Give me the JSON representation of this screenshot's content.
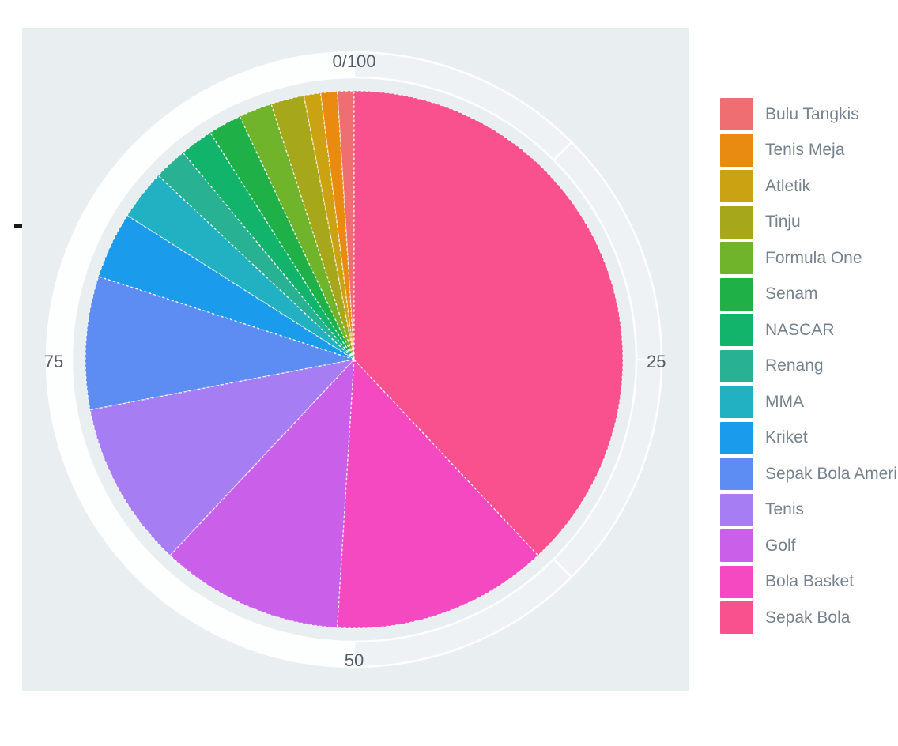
{
  "page": {
    "background": "#ffffff"
  },
  "plot": {
    "background": "#e9eef1",
    "ring_color": "#ffffff"
  },
  "axis": {
    "color": "#545e66",
    "labels": {
      "top": "0/100",
      "right": "25",
      "bottom": "50",
      "left": "75"
    },
    "tick_values": [
      0,
      12.5,
      25,
      37.5,
      50,
      62.5,
      75,
      87.5
    ]
  },
  "legend": {
    "position": "right",
    "text_color": "#76828d"
  },
  "marks": {
    "left_edge_dash": "-"
  },
  "chart_data": {
    "type": "pie",
    "title": "",
    "categories": [
      "Bulu Tangkis",
      "Tenis Meja",
      "Atletik",
      "Tinju",
      "Formula One",
      "Senam",
      "NASCAR",
      "Renang",
      "MMA",
      "Kriket",
      "Sepak Bola Amerika",
      "Tenis",
      "Golf",
      "Bola Basket",
      "Sepak Bola"
    ],
    "values": [
      1,
      1,
      1,
      2,
      2,
      2,
      2,
      2,
      3,
      4,
      8,
      10,
      11,
      13,
      38
    ],
    "colors": [
      "#ef6e72",
      "#e98b11",
      "#caa212",
      "#a7a71c",
      "#6fb42a",
      "#1fb148",
      "#12b46c",
      "#28b193",
      "#22b1c2",
      "#1a9bec",
      "#5d8cf2",
      "#a77df3",
      "#ca60e9",
      "#f449c1",
      "#f9508e"
    ],
    "axis_range": [
      0,
      100
    ],
    "axis_tick_labels": [
      "0/100",
      "25",
      "50",
      "75"
    ],
    "start_position": "top",
    "direction": "counterclockwise",
    "legend_position": "right",
    "grid": "circular-gauge-ring"
  }
}
